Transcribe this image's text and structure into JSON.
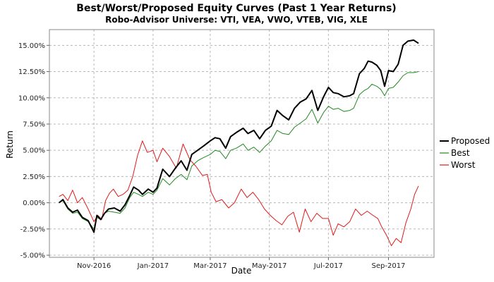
{
  "chart_data": {
    "type": "line",
    "title": "Best/Worst/Proposed Equity Curves (Past 1 Year Returns)",
    "subtitle": "Robo-Advisor Universe: VTI, VEA, VWO, VTEB, VIG, XLE",
    "xlabel": "Date",
    "ylabel": "Return",
    "xlim": [
      "2016-09-16",
      "2017-10-18"
    ],
    "ylim": [
      -5.2,
      16.5
    ],
    "yticks": [
      -5.0,
      -2.5,
      0.0,
      2.5,
      5.0,
      7.5,
      10.0,
      12.5,
      15.0
    ],
    "ytick_labels": [
      "-5.00%",
      "-2.50%",
      "0.00%",
      "2.50%",
      "5.00%",
      "7.50%",
      "10.00%",
      "12.50%",
      "15.00%"
    ],
    "xticks": [
      "2016-11-01",
      "2017-01-01",
      "2017-03-01",
      "2017-05-01",
      "2017-07-01",
      "2017-09-01"
    ],
    "xtick_labels": [
      "Nov-2016",
      "Jan-2017",
      "Mar-2017",
      "May-2017",
      "Jul-2017",
      "Sep-2017"
    ],
    "grid": true,
    "legend_position": "right",
    "series": [
      {
        "name": "Proposed",
        "color": "#000000",
        "x": [
          "2016-09-26",
          "2016-09-30",
          "2016-10-05",
          "2016-10-10",
          "2016-10-15",
          "2016-10-20",
          "2016-10-26",
          "2016-11-01",
          "2016-11-04",
          "2016-11-08",
          "2016-11-12",
          "2016-11-16",
          "2016-11-22",
          "2016-11-28",
          "2016-12-03",
          "2016-12-08",
          "2016-12-12",
          "2016-12-17",
          "2016-12-21",
          "2016-12-27",
          "2017-01-01",
          "2017-01-05",
          "2017-01-11",
          "2017-01-18",
          "2017-01-24",
          "2017-01-30",
          "2017-02-05",
          "2017-02-10",
          "2017-02-16",
          "2017-02-22",
          "2017-03-01",
          "2017-03-06",
          "2017-03-11",
          "2017-03-17",
          "2017-03-22",
          "2017-03-28",
          "2017-04-04",
          "2017-04-09",
          "2017-04-15",
          "2017-04-21",
          "2017-04-27",
          "2017-05-03",
          "2017-05-09",
          "2017-05-15",
          "2017-05-21",
          "2017-05-27",
          "2017-06-02",
          "2017-06-08",
          "2017-06-14",
          "2017-06-20",
          "2017-06-26",
          "2017-07-01",
          "2017-07-06",
          "2017-07-11",
          "2017-07-17",
          "2017-07-23",
          "2017-07-27",
          "2017-08-02",
          "2017-08-07",
          "2017-08-11",
          "2017-08-15",
          "2017-08-20",
          "2017-08-24",
          "2017-08-28",
          "2017-09-01",
          "2017-09-06",
          "2017-09-11",
          "2017-09-16",
          "2017-09-21",
          "2017-09-27",
          "2017-10-02"
        ],
        "y": [
          0.0,
          0.3,
          -0.5,
          -0.9,
          -0.7,
          -1.4,
          -1.7,
          -2.8,
          -1.2,
          -1.6,
          -1.0,
          -0.6,
          -0.5,
          -0.8,
          -0.2,
          0.7,
          1.5,
          1.2,
          0.8,
          1.3,
          1.0,
          1.4,
          3.2,
          2.5,
          3.3,
          4.0,
          3.1,
          4.6,
          5.0,
          5.4,
          5.9,
          6.2,
          6.1,
          5.2,
          6.3,
          6.7,
          7.1,
          6.6,
          6.9,
          6.1,
          6.9,
          7.3,
          8.8,
          8.3,
          7.9,
          9.0,
          9.6,
          9.9,
          10.7,
          8.8,
          10.1,
          11.0,
          10.5,
          10.4,
          10.1,
          10.2,
          10.4,
          12.3,
          12.8,
          13.5,
          13.4,
          13.1,
          12.6,
          11.1,
          12.6,
          12.5,
          13.2,
          15.0,
          15.4,
          15.5,
          15.2
        ]
      },
      {
        "name": "Best",
        "color": "#1f8a1f",
        "x": [
          "2016-09-26",
          "2016-09-30",
          "2016-10-05",
          "2016-10-10",
          "2016-10-15",
          "2016-10-20",
          "2016-10-26",
          "2016-11-01",
          "2016-11-04",
          "2016-11-08",
          "2016-11-12",
          "2016-11-16",
          "2016-11-22",
          "2016-11-28",
          "2016-12-03",
          "2016-12-08",
          "2016-12-12",
          "2016-12-17",
          "2016-12-21",
          "2016-12-27",
          "2017-01-01",
          "2017-01-05",
          "2017-01-11",
          "2017-01-18",
          "2017-01-24",
          "2017-01-30",
          "2017-02-05",
          "2017-02-10",
          "2017-02-16",
          "2017-02-22",
          "2017-03-01",
          "2017-03-06",
          "2017-03-11",
          "2017-03-17",
          "2017-03-22",
          "2017-03-28",
          "2017-04-04",
          "2017-04-09",
          "2017-04-15",
          "2017-04-21",
          "2017-04-27",
          "2017-05-03",
          "2017-05-09",
          "2017-05-15",
          "2017-05-21",
          "2017-05-27",
          "2017-06-02",
          "2017-06-08",
          "2017-06-14",
          "2017-06-20",
          "2017-06-26",
          "2017-07-01",
          "2017-07-06",
          "2017-07-11",
          "2017-07-17",
          "2017-07-23",
          "2017-07-27",
          "2017-08-02",
          "2017-08-07",
          "2017-08-11",
          "2017-08-15",
          "2017-08-20",
          "2017-08-24",
          "2017-08-28",
          "2017-09-01",
          "2017-09-06",
          "2017-09-11",
          "2017-09-16",
          "2017-09-21",
          "2017-09-27",
          "2017-10-02"
        ],
        "y": [
          0.0,
          0.2,
          -0.6,
          -1.0,
          -0.9,
          -1.5,
          -1.8,
          -2.5,
          -1.4,
          -1.6,
          -1.0,
          -0.8,
          -0.9,
          -1.0,
          -0.5,
          0.5,
          1.0,
          0.8,
          0.6,
          1.0,
          0.8,
          1.2,
          2.3,
          1.7,
          2.3,
          2.7,
          2.2,
          3.5,
          4.0,
          4.3,
          4.6,
          5.0,
          4.9,
          4.2,
          5.0,
          5.2,
          5.6,
          5.0,
          5.3,
          4.8,
          5.4,
          5.9,
          6.9,
          6.6,
          6.5,
          7.2,
          7.6,
          8.0,
          8.9,
          7.6,
          8.6,
          9.2,
          8.9,
          9.0,
          8.7,
          8.8,
          9.0,
          10.3,
          10.7,
          10.9,
          11.3,
          11.1,
          10.8,
          10.2,
          10.9,
          11.0,
          11.5,
          12.1,
          12.4,
          12.4,
          12.5
        ]
      },
      {
        "name": "Worst",
        "color": "#e01a1a",
        "x": [
          "2016-09-26",
          "2016-09-30",
          "2016-10-05",
          "2016-10-10",
          "2016-10-15",
          "2016-10-20",
          "2016-10-26",
          "2016-11-01",
          "2016-11-05",
          "2016-11-09",
          "2016-11-13",
          "2016-11-17",
          "2016-11-21",
          "2016-11-26",
          "2016-12-01",
          "2016-12-06",
          "2016-12-11",
          "2016-12-16",
          "2016-12-21",
          "2016-12-26",
          "2017-01-01",
          "2017-01-05",
          "2017-01-11",
          "2017-01-18",
          "2017-01-25",
          "2017-02-01",
          "2017-02-08",
          "2017-02-14",
          "2017-02-21",
          "2017-02-26",
          "2017-03-02",
          "2017-03-07",
          "2017-03-13",
          "2017-03-20",
          "2017-03-26",
          "2017-04-02",
          "2017-04-08",
          "2017-04-14",
          "2017-04-20",
          "2017-04-26",
          "2017-05-02",
          "2017-05-08",
          "2017-05-14",
          "2017-05-20",
          "2017-05-26",
          "2017-06-01",
          "2017-06-07",
          "2017-06-13",
          "2017-06-19",
          "2017-06-25",
          "2017-07-01",
          "2017-07-06",
          "2017-07-11",
          "2017-07-17",
          "2017-07-23",
          "2017-07-29",
          "2017-08-04",
          "2017-08-10",
          "2017-08-16",
          "2017-08-21",
          "2017-08-25",
          "2017-08-30",
          "2017-09-04",
          "2017-09-09",
          "2017-09-14",
          "2017-09-19",
          "2017-09-24",
          "2017-09-28",
          "2017-10-02"
        ],
        "y": [
          0.6,
          0.8,
          0.2,
          1.2,
          0.0,
          0.5,
          -0.6,
          -1.8,
          -1.2,
          -1.6,
          0.2,
          0.9,
          1.3,
          0.6,
          0.8,
          1.2,
          2.5,
          4.5,
          5.9,
          4.8,
          5.0,
          3.9,
          5.2,
          4.4,
          3.3,
          5.6,
          4.1,
          3.5,
          2.6,
          2.7,
          1.0,
          0.1,
          0.3,
          -0.5,
          0.0,
          1.3,
          0.5,
          1.0,
          0.3,
          -0.6,
          -1.2,
          -1.7,
          -2.1,
          -1.3,
          -0.9,
          -2.8,
          -0.6,
          -1.8,
          -1.0,
          -1.5,
          -1.5,
          -3.1,
          -2.0,
          -2.3,
          -1.8,
          -0.6,
          -1.2,
          -0.8,
          -1.2,
          -1.5,
          -2.3,
          -3.1,
          -4.1,
          -3.4,
          -3.8,
          -1.9,
          -0.6,
          0.8,
          1.6
        ]
      }
    ]
  }
}
